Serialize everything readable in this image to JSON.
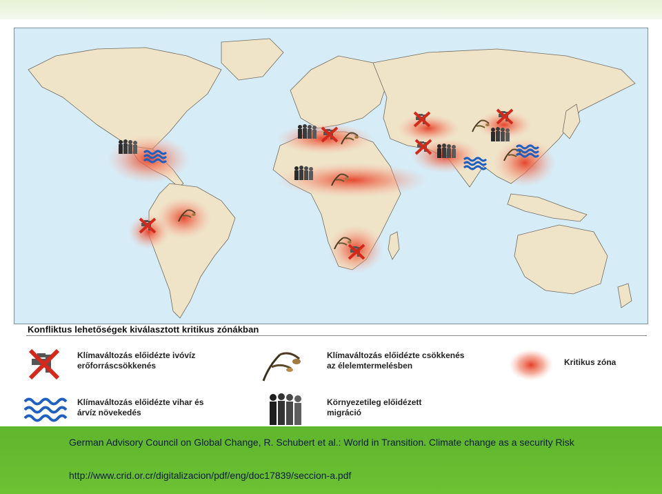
{
  "legend": {
    "title": "Konfliktus lehetőségek kiválasztott kritikus zónákban",
    "items": [
      {
        "icon": "crossed-faucet-icon",
        "line1": "Klímaváltozás előidézte ivóvíz",
        "line2": "erőforráscsökkenés"
      },
      {
        "icon": "wilted-crop-icon",
        "line1": "Klímaváltozás előidézte csökkenés",
        "line2": "az élelemtermelésben"
      },
      {
        "icon": "critical-zone-icon",
        "line1": "Kritikus zóna",
        "line2": ""
      },
      {
        "icon": "storm-flood-icon",
        "line1": "Klímaváltozás előidézte vihar és",
        "line2": "árvíz növekedés"
      },
      {
        "icon": "migration-people-icon",
        "line1": "Környezetileg előidézett",
        "line2": "migráció"
      }
    ]
  },
  "footer": {
    "citation": "German Advisory Council on Global Change, R. Schubert et al.: World in Transition. Climate change as a security Risk",
    "url": "http://www.crid.or.cr/digitalizacion/pdf/eng/doc17839/seccion-a.pdf"
  },
  "colors": {
    "ocean": "#d6ecf7",
    "land": "#efe3c8",
    "zone": "#e8503a",
    "water_icon": "#c0392b",
    "flood_icon": "#1f5fbf",
    "footer": "#63b92f"
  }
}
